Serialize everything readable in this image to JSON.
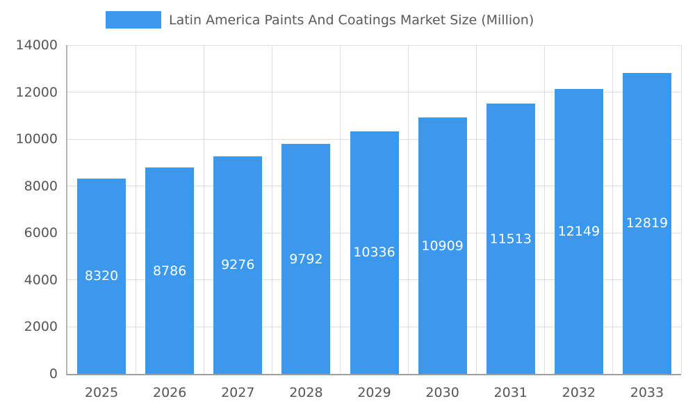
{
  "chart_data": {
    "type": "bar",
    "title": "Latin America Paints And Coatings Market Size (Million)",
    "categories": [
      "2025",
      "2026",
      "2027",
      "2028",
      "2029",
      "2030",
      "2031",
      "2032",
      "2033"
    ],
    "values": [
      8320,
      8786,
      9276,
      9792,
      10336,
      10909,
      11513,
      12149,
      12819
    ],
    "series_name": "Latin America Paints And Coatings Market Size (Million)",
    "xlabel": "",
    "ylabel": "",
    "ylim": [
      0,
      14000
    ],
    "ytick_step": 2000,
    "grid": true,
    "legend_position": "top",
    "bar_color": "#3b98ec",
    "value_label_color": "#ffffff",
    "axis_text_color": "#555555"
  }
}
